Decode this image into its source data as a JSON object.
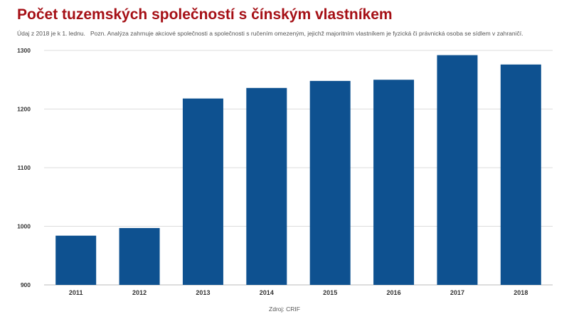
{
  "chart_data": {
    "type": "bar",
    "title": "Počet tuzemských společností s čínským vlastníkem",
    "subtitle": "Údaj z 2018 je k 1. lednu.   Pozn. Analýza zahrnuje akciové společnosti a společnosti s ručením omezeným, jejichž majoritním vlastníkem je fyzická či právnická osoba se sídlem v zahraničí.",
    "source": "Zdroj: CRIF",
    "categories": [
      "2011",
      "2012",
      "2013",
      "2014",
      "2015",
      "2016",
      "2017",
      "2018"
    ],
    "values": [
      984,
      997,
      1218,
      1236,
      1248,
      1250,
      1292,
      1276
    ],
    "ylim": [
      900,
      1300
    ],
    "yticks": [
      "900",
      "1000",
      "1100",
      "1200",
      "1300"
    ],
    "grid": true,
    "bar_color": "#0e5190",
    "title_color": "#a50f15"
  }
}
